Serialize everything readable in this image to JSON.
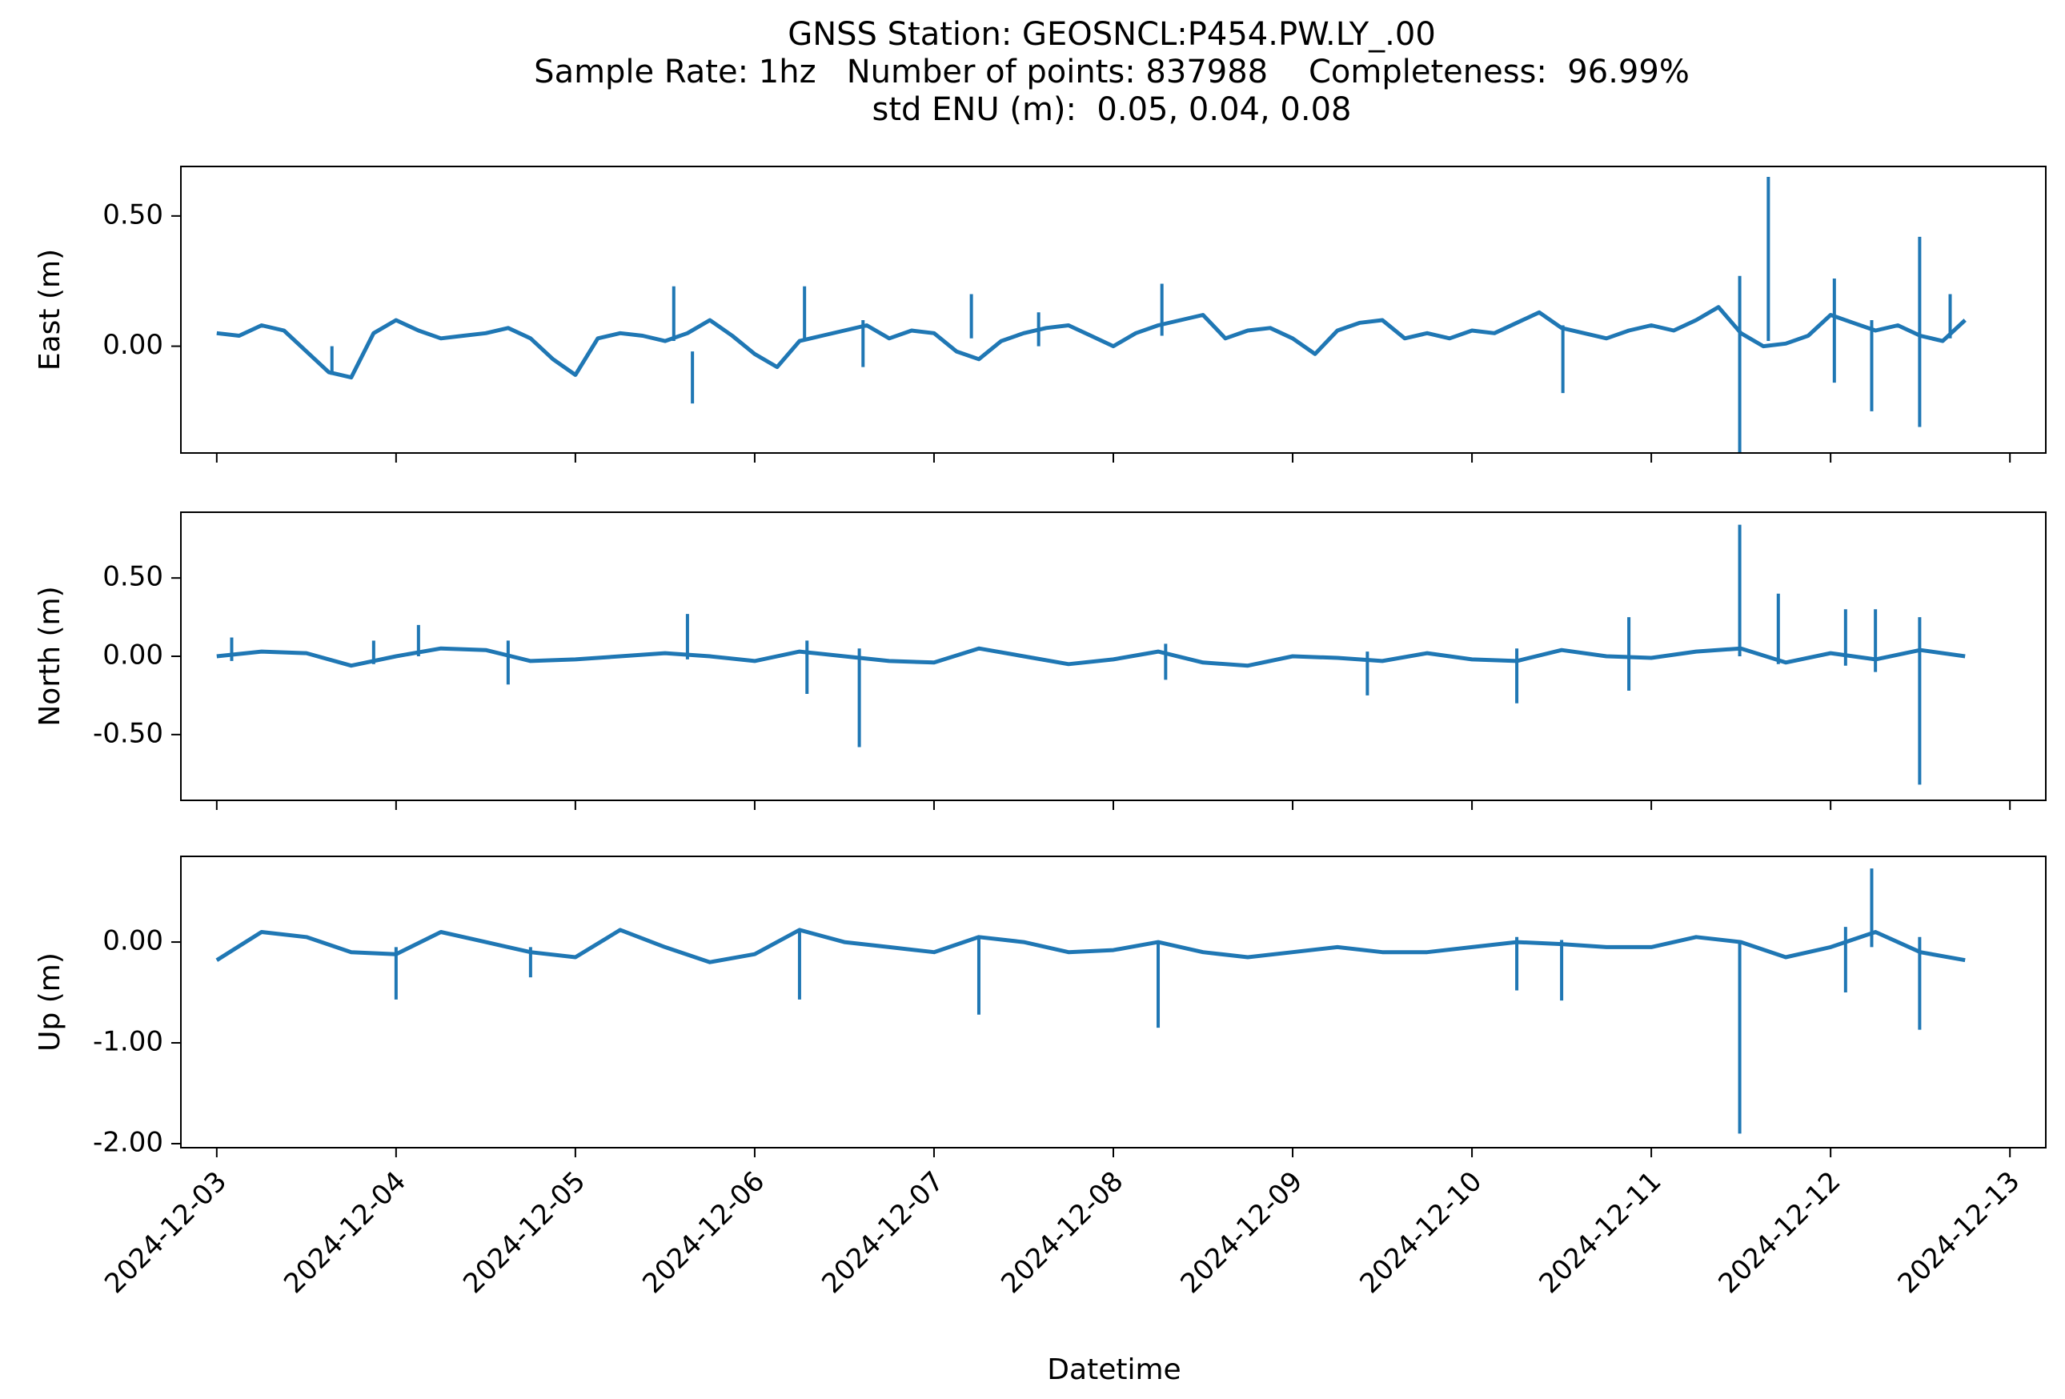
{
  "figure": {
    "title_lines": [
      "GNSS Station: GEOSNCL:P454.PW.LY_.00",
      "Sample Rate: 1hz   Number of points: 837988    Completeness:  96.99%",
      "std ENU (m):  0.05, 0.04, 0.08"
    ],
    "xlabel": "Datetime",
    "line_color": "#1f77b4"
  },
  "chart_data": [
    {
      "type": "line",
      "name": "East",
      "ylabel": "East (m)",
      "xlim": [
        "2024-12-02T19:12",
        "2024-12-13T04:48"
      ],
      "ylim": [
        -0.41,
        0.69
      ],
      "yticks": [
        0.5,
        0.0
      ],
      "ytick_labels": [
        "0.50",
        "0.00"
      ],
      "xticks": [
        "2024-12-03",
        "2024-12-04",
        "2024-12-05",
        "2024-12-06",
        "2024-12-07",
        "2024-12-08",
        "2024-12-09",
        "2024-12-10",
        "2024-12-11",
        "2024-12-12",
        "2024-12-13"
      ],
      "xtick_labels_shown": false,
      "x": [
        "2024-12-03T00:00",
        "2024-12-03T03:00",
        "2024-12-03T06:00",
        "2024-12-03T09:00",
        "2024-12-03T12:00",
        "2024-12-03T15:00",
        "2024-12-03T18:00",
        "2024-12-03T21:00",
        "2024-12-04T00:00",
        "2024-12-04T03:00",
        "2024-12-04T06:00",
        "2024-12-04T09:00",
        "2024-12-04T12:00",
        "2024-12-04T15:00",
        "2024-12-04T18:00",
        "2024-12-04T21:00",
        "2024-12-05T00:00",
        "2024-12-05T03:00",
        "2024-12-05T06:00",
        "2024-12-05T09:00",
        "2024-12-05T12:00",
        "2024-12-05T15:00",
        "2024-12-05T18:00",
        "2024-12-05T21:00",
        "2024-12-06T00:00",
        "2024-12-06T03:00",
        "2024-12-06T06:00",
        "2024-12-06T09:00",
        "2024-12-06T12:00",
        "2024-12-06T15:00",
        "2024-12-06T18:00",
        "2024-12-06T21:00",
        "2024-12-07T00:00",
        "2024-12-07T03:00",
        "2024-12-07T06:00",
        "2024-12-07T09:00",
        "2024-12-07T12:00",
        "2024-12-07T15:00",
        "2024-12-07T18:00",
        "2024-12-07T21:00",
        "2024-12-08T00:00",
        "2024-12-08T03:00",
        "2024-12-08T06:00",
        "2024-12-08T09:00",
        "2024-12-08T12:00",
        "2024-12-08T15:00",
        "2024-12-08T18:00",
        "2024-12-08T21:00",
        "2024-12-09T00:00",
        "2024-12-09T03:00",
        "2024-12-09T06:00",
        "2024-12-09T09:00",
        "2024-12-09T12:00",
        "2024-12-09T15:00",
        "2024-12-09T18:00",
        "2024-12-09T21:00",
        "2024-12-10T00:00",
        "2024-12-10T03:00",
        "2024-12-10T06:00",
        "2024-12-10T09:00",
        "2024-12-10T12:00",
        "2024-12-10T15:00",
        "2024-12-10T18:00",
        "2024-12-10T21:00",
        "2024-12-11T00:00",
        "2024-12-11T03:00",
        "2024-12-11T06:00",
        "2024-12-11T09:00",
        "2024-12-11T12:00",
        "2024-12-11T15:00",
        "2024-12-11T18:00",
        "2024-12-11T21:00",
        "2024-12-12T00:00",
        "2024-12-12T03:00",
        "2024-12-12T06:00",
        "2024-12-12T09:00",
        "2024-12-12T12:00",
        "2024-12-12T15:00",
        "2024-12-12T18:00"
      ],
      "y": [
        0.05,
        0.04,
        0.08,
        0.06,
        -0.02,
        -0.1,
        -0.12,
        0.05,
        0.1,
        0.06,
        0.03,
        0.04,
        0.05,
        0.07,
        0.03,
        -0.05,
        -0.11,
        0.03,
        0.05,
        0.04,
        0.02,
        0.05,
        0.1,
        0.04,
        -0.03,
        -0.08,
        0.02,
        0.04,
        0.06,
        0.08,
        0.03,
        0.06,
        0.05,
        -0.02,
        -0.05,
        0.02,
        0.05,
        0.07,
        0.08,
        0.04,
        0.0,
        0.05,
        0.08,
        0.1,
        0.12,
        0.03,
        0.06,
        0.07,
        0.03,
        -0.03,
        0.06,
        0.09,
        0.1,
        0.03,
        0.05,
        0.03,
        0.06,
        0.05,
        0.09,
        0.13,
        0.07,
        0.05,
        0.03,
        0.06,
        0.08,
        0.06,
        0.1,
        0.15,
        0.05,
        0.0,
        0.01,
        0.04,
        0.12,
        0.09,
        0.06,
        0.08,
        0.04,
        0.02,
        0.1
      ],
      "spikes": [
        {
          "x": "2024-12-03T15:25",
          "top": 0.0,
          "bottom": -0.11
        },
        {
          "x": "2024-12-05T13:10",
          "top": 0.23,
          "bottom": 0.02
        },
        {
          "x": "2024-12-05T15:40",
          "top": -0.02,
          "bottom": -0.22
        },
        {
          "x": "2024-12-06T06:40",
          "top": 0.23,
          "bottom": 0.02
        },
        {
          "x": "2024-12-06T14:30",
          "top": 0.1,
          "bottom": -0.08
        },
        {
          "x": "2024-12-07T05:00",
          "top": 0.2,
          "bottom": 0.03
        },
        {
          "x": "2024-12-07T14:00",
          "top": 0.13,
          "bottom": 0.0
        },
        {
          "x": "2024-12-08T06:30",
          "top": 0.24,
          "bottom": 0.04
        },
        {
          "x": "2024-12-10T12:10",
          "top": 0.08,
          "bottom": -0.18
        },
        {
          "x": "2024-12-11T11:50",
          "top": 0.27,
          "bottom": -0.41
        },
        {
          "x": "2024-12-11T15:40",
          "top": 0.65,
          "bottom": 0.02
        },
        {
          "x": "2024-12-12T00:30",
          "top": 0.26,
          "bottom": -0.14
        },
        {
          "x": "2024-12-12T05:30",
          "top": 0.1,
          "bottom": -0.25
        },
        {
          "x": "2024-12-12T11:55",
          "top": 0.42,
          "bottom": -0.31
        },
        {
          "x": "2024-12-12T16:00",
          "top": 0.2,
          "bottom": 0.03
        }
      ]
    },
    {
      "type": "line",
      "name": "North",
      "ylabel": "North (m)",
      "xlim": [
        "2024-12-02T19:12",
        "2024-12-13T04:48"
      ],
      "ylim": [
        -0.92,
        0.92
      ],
      "yticks": [
        0.5,
        0.0,
        -0.5
      ],
      "ytick_labels": [
        "0.50",
        "0.00",
        "-0.50"
      ],
      "xticks": [
        "2024-12-03",
        "2024-12-04",
        "2024-12-05",
        "2024-12-06",
        "2024-12-07",
        "2024-12-08",
        "2024-12-09",
        "2024-12-10",
        "2024-12-11",
        "2024-12-12",
        "2024-12-13"
      ],
      "xtick_labels_shown": false,
      "x": [
        "2024-12-03T00:00",
        "2024-12-03T06:00",
        "2024-12-03T12:00",
        "2024-12-03T18:00",
        "2024-12-04T00:00",
        "2024-12-04T06:00",
        "2024-12-04T12:00",
        "2024-12-04T18:00",
        "2024-12-05T00:00",
        "2024-12-05T06:00",
        "2024-12-05T12:00",
        "2024-12-05T18:00",
        "2024-12-06T00:00",
        "2024-12-06T06:00",
        "2024-12-06T12:00",
        "2024-12-06T18:00",
        "2024-12-07T00:00",
        "2024-12-07T06:00",
        "2024-12-07T12:00",
        "2024-12-07T18:00",
        "2024-12-08T00:00",
        "2024-12-08T06:00",
        "2024-12-08T12:00",
        "2024-12-08T18:00",
        "2024-12-09T00:00",
        "2024-12-09T06:00",
        "2024-12-09T12:00",
        "2024-12-09T18:00",
        "2024-12-10T00:00",
        "2024-12-10T06:00",
        "2024-12-10T12:00",
        "2024-12-10T18:00",
        "2024-12-11T00:00",
        "2024-12-11T06:00",
        "2024-12-11T12:00",
        "2024-12-11T18:00",
        "2024-12-12T00:00",
        "2024-12-12T06:00",
        "2024-12-12T12:00",
        "2024-12-12T18:00"
      ],
      "y": [
        0.0,
        0.03,
        0.02,
        -0.06,
        0.0,
        0.05,
        0.04,
        -0.03,
        -0.02,
        0.0,
        0.02,
        0.0,
        -0.03,
        0.03,
        0.0,
        -0.03,
        -0.04,
        0.05,
        0.0,
        -0.05,
        -0.02,
        0.03,
        -0.04,
        -0.06,
        0.0,
        -0.01,
        -0.03,
        0.02,
        -0.02,
        -0.03,
        0.04,
        0.0,
        -0.01,
        0.03,
        0.05,
        -0.04,
        0.02,
        -0.02,
        0.04,
        0.0
      ],
      "spikes": [
        {
          "x": "2024-12-03T02:00",
          "top": 0.12,
          "bottom": -0.03
        },
        {
          "x": "2024-12-03T21:00",
          "top": 0.1,
          "bottom": -0.05
        },
        {
          "x": "2024-12-04T03:00",
          "top": 0.2,
          "bottom": 0.0
        },
        {
          "x": "2024-12-04T15:00",
          "top": 0.1,
          "bottom": -0.18
        },
        {
          "x": "2024-12-05T15:00",
          "top": 0.27,
          "bottom": -0.02
        },
        {
          "x": "2024-12-06T07:00",
          "top": 0.1,
          "bottom": -0.24
        },
        {
          "x": "2024-12-06T14:00",
          "top": 0.05,
          "bottom": -0.58
        },
        {
          "x": "2024-12-08T07:00",
          "top": 0.08,
          "bottom": -0.15
        },
        {
          "x": "2024-12-09T10:00",
          "top": 0.03,
          "bottom": -0.25
        },
        {
          "x": "2024-12-10T06:00",
          "top": 0.05,
          "bottom": -0.3
        },
        {
          "x": "2024-12-10T21:00",
          "top": 0.25,
          "bottom": -0.22
        },
        {
          "x": "2024-12-11T11:50",
          "top": 0.84,
          "bottom": 0.0
        },
        {
          "x": "2024-12-11T17:00",
          "top": 0.4,
          "bottom": -0.05
        },
        {
          "x": "2024-12-12T02:00",
          "top": 0.3,
          "bottom": -0.06
        },
        {
          "x": "2024-12-12T06:00",
          "top": 0.3,
          "bottom": -0.1
        },
        {
          "x": "2024-12-12T11:55",
          "top": 0.25,
          "bottom": -0.82
        }
      ]
    },
    {
      "type": "line",
      "name": "Up",
      "ylabel": "Up (m)",
      "xlim": [
        "2024-12-02T19:12",
        "2024-12-13T04:48"
      ],
      "ylim": [
        -2.04,
        0.85
      ],
      "yticks": [
        0.0,
        -1.0,
        -2.0
      ],
      "ytick_labels": [
        "0.00",
        "-1.00",
        "-2.00"
      ],
      "xticks": [
        "2024-12-03",
        "2024-12-04",
        "2024-12-05",
        "2024-12-06",
        "2024-12-07",
        "2024-12-08",
        "2024-12-09",
        "2024-12-10",
        "2024-12-11",
        "2024-12-12",
        "2024-12-13"
      ],
      "xtick_labels": [
        "2024-12-03",
        "2024-12-04",
        "2024-12-05",
        "2024-12-06",
        "2024-12-07",
        "2024-12-08",
        "2024-12-09",
        "2024-12-10",
        "2024-12-11",
        "2024-12-12",
        "2024-12-13"
      ],
      "x": [
        "2024-12-03T00:00",
        "2024-12-03T06:00",
        "2024-12-03T12:00",
        "2024-12-03T18:00",
        "2024-12-04T00:00",
        "2024-12-04T06:00",
        "2024-12-04T12:00",
        "2024-12-04T18:00",
        "2024-12-05T00:00",
        "2024-12-05T06:00",
        "2024-12-05T12:00",
        "2024-12-05T18:00",
        "2024-12-06T00:00",
        "2024-12-06T06:00",
        "2024-12-06T12:00",
        "2024-12-06T18:00",
        "2024-12-07T00:00",
        "2024-12-07T06:00",
        "2024-12-07T12:00",
        "2024-12-07T18:00",
        "2024-12-08T00:00",
        "2024-12-08T06:00",
        "2024-12-08T12:00",
        "2024-12-08T18:00",
        "2024-12-09T00:00",
        "2024-12-09T06:00",
        "2024-12-09T12:00",
        "2024-12-09T18:00",
        "2024-12-10T00:00",
        "2024-12-10T06:00",
        "2024-12-10T12:00",
        "2024-12-10T18:00",
        "2024-12-11T00:00",
        "2024-12-11T06:00",
        "2024-12-11T12:00",
        "2024-12-11T18:00",
        "2024-12-12T00:00",
        "2024-12-12T06:00",
        "2024-12-12T12:00",
        "2024-12-12T18:00"
      ],
      "y": [
        -0.18,
        0.1,
        0.05,
        -0.1,
        -0.12,
        0.1,
        0.0,
        -0.1,
        -0.15,
        0.12,
        -0.05,
        -0.2,
        -0.12,
        0.12,
        0.0,
        -0.05,
        -0.1,
        0.05,
        0.0,
        -0.1,
        -0.08,
        0.0,
        -0.1,
        -0.15,
        -0.1,
        -0.05,
        -0.1,
        -0.1,
        -0.05,
        0.0,
        -0.02,
        -0.05,
        -0.05,
        0.05,
        0.0,
        -0.15,
        -0.05,
        0.1,
        -0.1,
        -0.18
      ],
      "spikes": [
        {
          "x": "2024-12-04T00:00",
          "top": -0.05,
          "bottom": -0.57
        },
        {
          "x": "2024-12-04T18:00",
          "top": -0.05,
          "bottom": -0.35
        },
        {
          "x": "2024-12-06T06:00",
          "top": 0.1,
          "bottom": -0.57
        },
        {
          "x": "2024-12-07T06:00",
          "top": 0.05,
          "bottom": -0.72
        },
        {
          "x": "2024-12-08T06:00",
          "top": 0.0,
          "bottom": -0.85
        },
        {
          "x": "2024-12-10T06:00",
          "top": 0.05,
          "bottom": -0.48
        },
        {
          "x": "2024-12-10T12:00",
          "top": 0.02,
          "bottom": -0.58
        },
        {
          "x": "2024-12-11T11:50",
          "top": 0.0,
          "bottom": -1.9
        },
        {
          "x": "2024-12-12T02:00",
          "top": 0.15,
          "bottom": -0.5
        },
        {
          "x": "2024-12-12T05:30",
          "top": 0.73,
          "bottom": -0.05
        },
        {
          "x": "2024-12-12T11:55",
          "top": 0.05,
          "bottom": -0.87
        }
      ]
    }
  ]
}
